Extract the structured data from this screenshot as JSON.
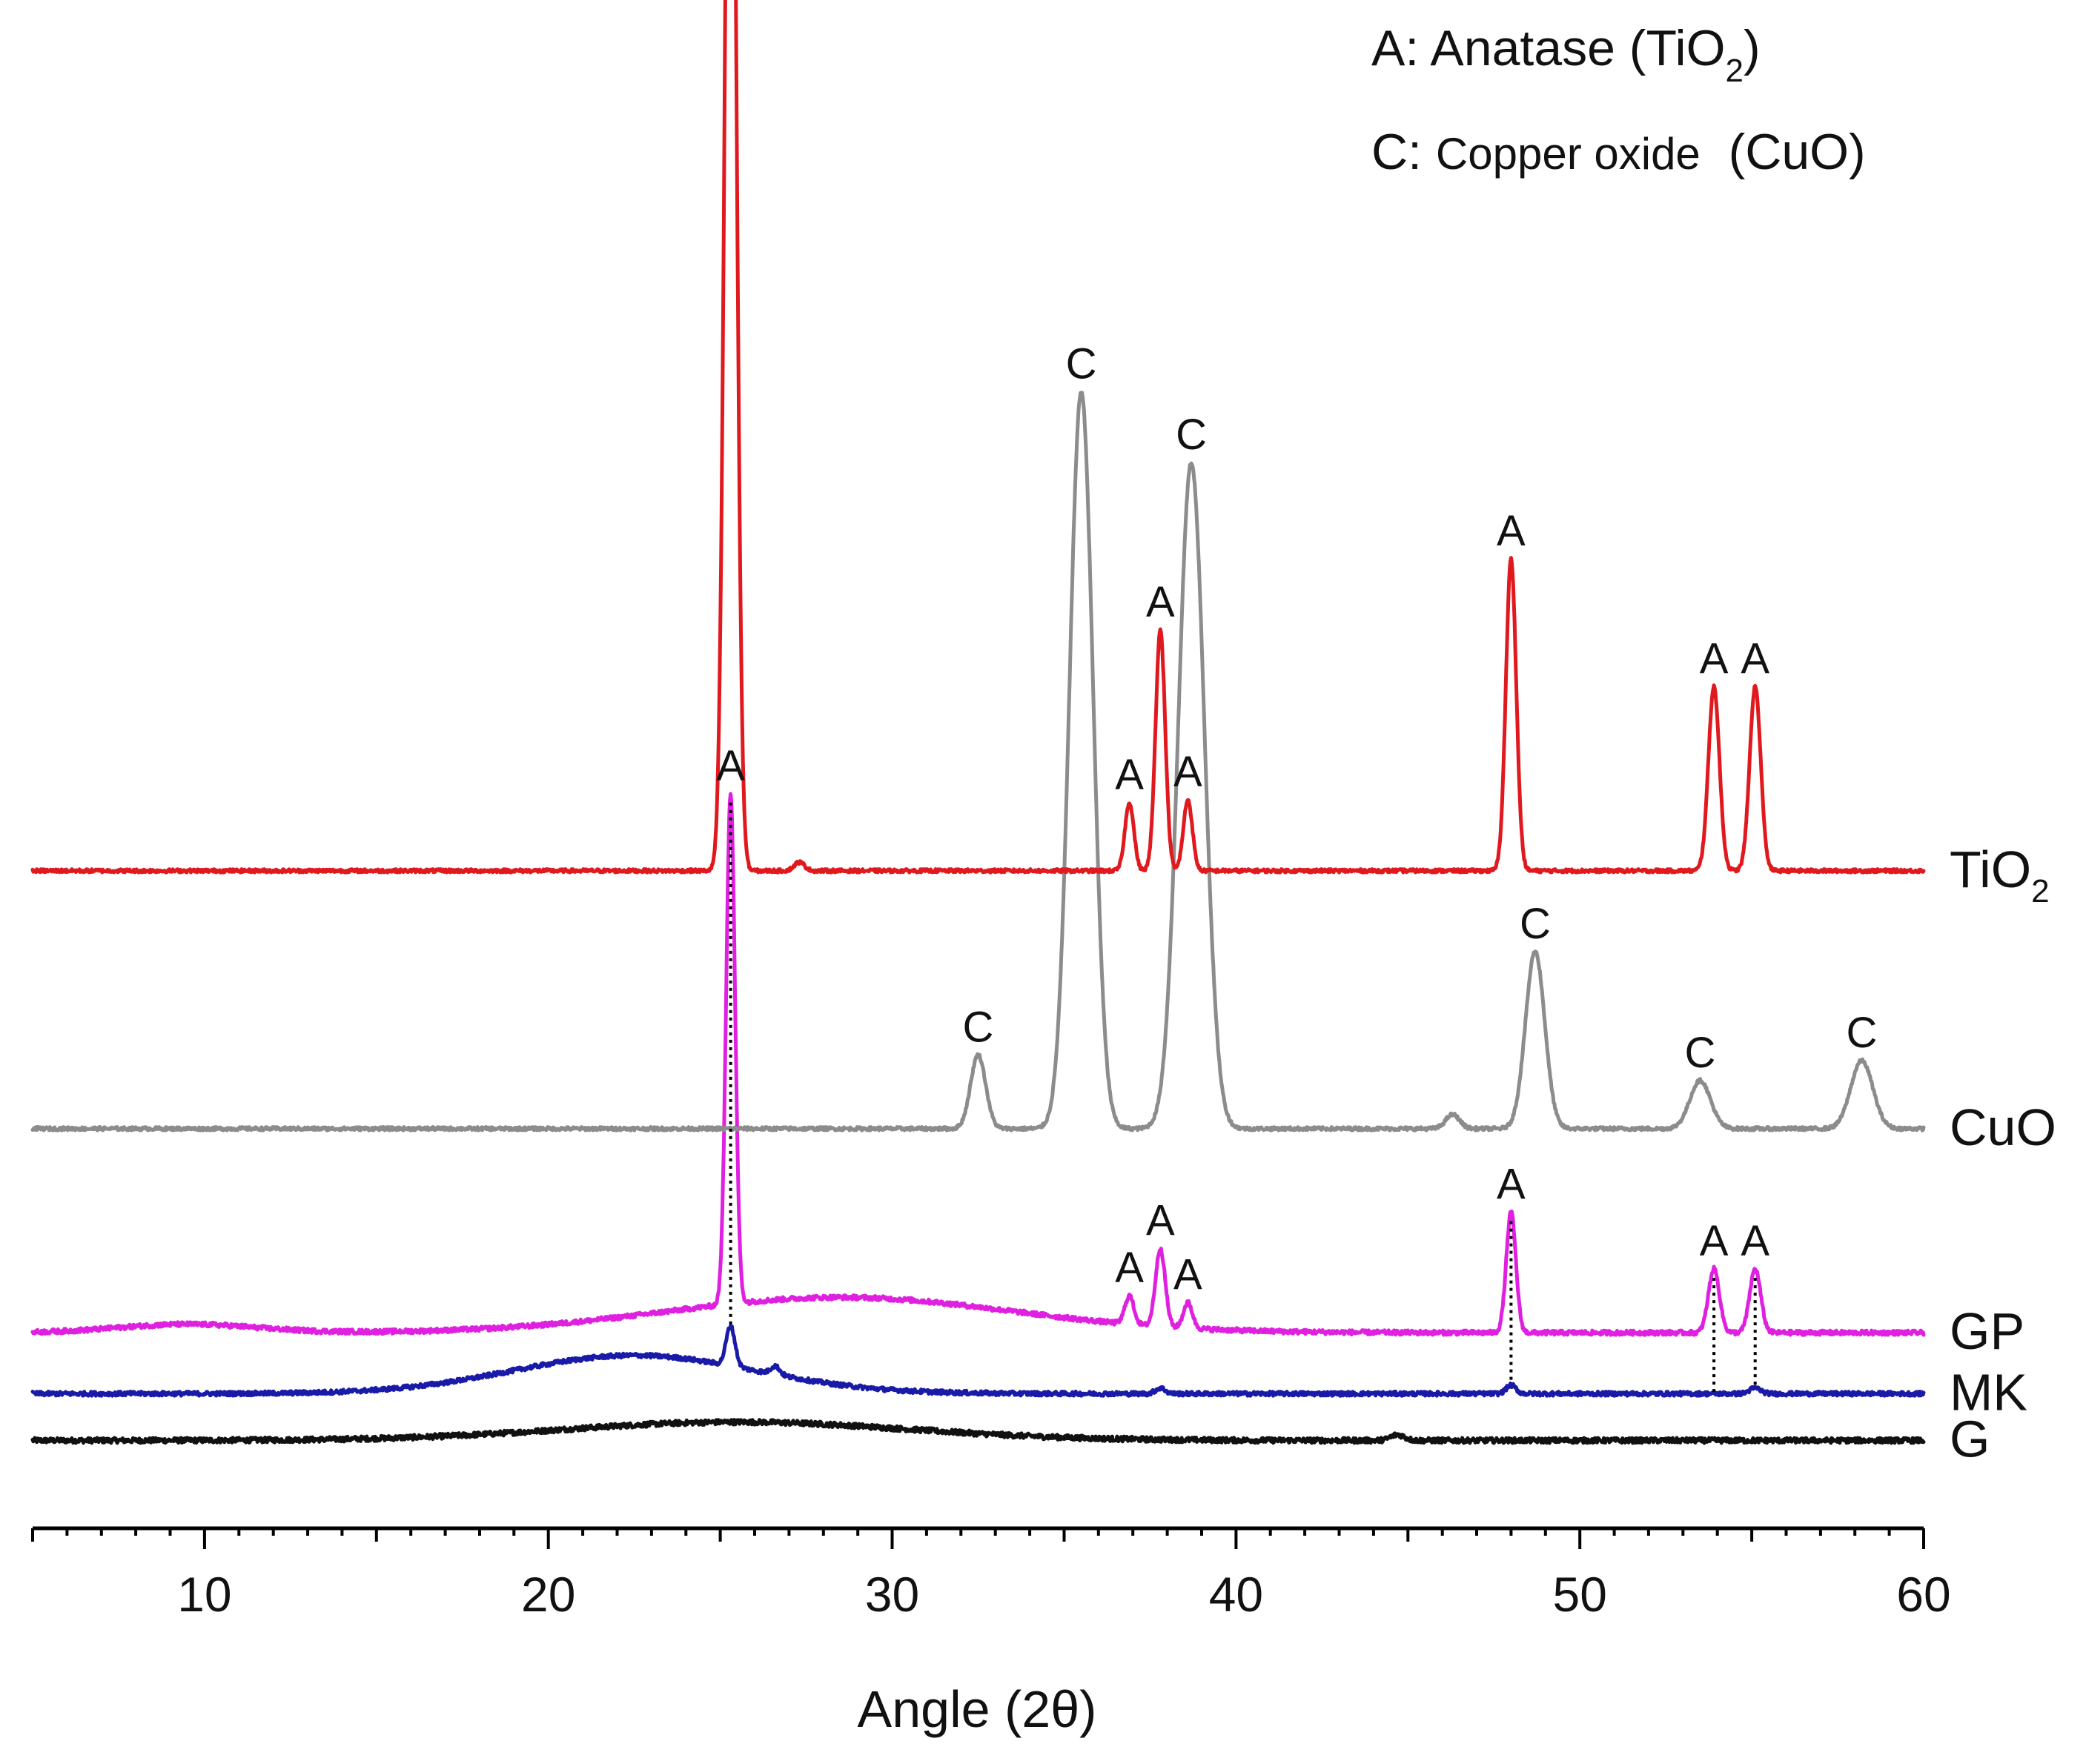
{
  "chart_data": {
    "type": "line",
    "title": "",
    "xlabel": "Angle (2θ)",
    "ylabel": "",
    "xlim": [
      5,
      60
    ],
    "x_ticks": [
      10,
      20,
      30,
      40,
      50,
      60
    ],
    "x_tick_labels": [
      "10",
      "20",
      "30",
      "40",
      "50",
      "60"
    ],
    "legend": {
      "placement": "top-right",
      "entries": [
        {
          "prefix": "A: Anatase (TiO",
          "sub": "2",
          "suffix": ")"
        },
        {
          "prefix": "C: ",
          "small": "Copper oxide",
          "suffix": "  (CuO)"
        }
      ]
    },
    "series": [
      {
        "name": "TiO2",
        "label_main": "TiO",
        "label_sub": "2",
        "color": "#e0191f",
        "baseline": 0.464,
        "noise": 0.0012,
        "peaks": [
          {
            "x": 25.3,
            "h": 0.98,
            "w": 0.16,
            "label": "A"
          },
          {
            "x": 27.3,
            "h": 0.006,
            "w": 0.15,
            "label": ""
          },
          {
            "x": 36.9,
            "h": 0.048,
            "w": 0.13,
            "label": "A"
          },
          {
            "x": 37.8,
            "h": 0.17,
            "w": 0.14,
            "label": "A"
          },
          {
            "x": 38.6,
            "h": 0.05,
            "w": 0.13,
            "label": "A"
          },
          {
            "x": 48.0,
            "h": 0.22,
            "w": 0.15,
            "label": "A"
          },
          {
            "x": 53.9,
            "h": 0.13,
            "w": 0.16,
            "label": "A"
          },
          {
            "x": 55.1,
            "h": 0.13,
            "w": 0.16,
            "label": "A"
          }
        ]
      },
      {
        "name": "CuO",
        "label_main": "CuO",
        "label_sub": "",
        "color": "#8c8c8c",
        "baseline": 0.282,
        "noise": 0.0012,
        "peaks": [
          {
            "x": 32.5,
            "h": 0.052,
            "w": 0.22,
            "label": "C"
          },
          {
            "x": 35.5,
            "h": 0.52,
            "w": 0.34,
            "label": "C"
          },
          {
            "x": 38.7,
            "h": 0.47,
            "w": 0.38,
            "label": "C"
          },
          {
            "x": 46.3,
            "h": 0.01,
            "w": 0.2,
            "label": ""
          },
          {
            "x": 48.7,
            "h": 0.125,
            "w": 0.28,
            "label": "C"
          },
          {
            "x": 53.5,
            "h": 0.034,
            "w": 0.3,
            "label": "C"
          },
          {
            "x": 58.2,
            "h": 0.048,
            "w": 0.32,
            "label": "C"
          }
        ]
      },
      {
        "name": "GP",
        "label_main": "GP",
        "label_sub": "",
        "color": "#e020e0",
        "baseline": 0.138,
        "noise": 0.0016,
        "humps": [
          {
            "x": 28.5,
            "h": 0.025,
            "w": 5.0
          },
          {
            "x": 9.5,
            "h": 0.006,
            "w": 2.0
          }
        ],
        "peaks": [
          {
            "x": 25.3,
            "h": 0.36,
            "w": 0.13,
            "label": "A"
          },
          {
            "x": 36.9,
            "h": 0.02,
            "w": 0.13,
            "label": "A"
          },
          {
            "x": 37.8,
            "h": 0.055,
            "w": 0.14,
            "label": "A"
          },
          {
            "x": 38.6,
            "h": 0.018,
            "w": 0.13,
            "label": "A"
          },
          {
            "x": 48.0,
            "h": 0.085,
            "w": 0.14,
            "label": "A"
          },
          {
            "x": 53.9,
            "h": 0.045,
            "w": 0.16,
            "label": "A"
          },
          {
            "x": 55.1,
            "h": 0.045,
            "w": 0.16,
            "label": "A"
          }
        ]
      },
      {
        "name": "MK",
        "label_main": "MK",
        "label_sub": "",
        "color": "#1a1aa8",
        "baseline": 0.095,
        "noise": 0.0015,
        "humps": [
          {
            "x": 22.5,
            "h": 0.027,
            "w": 3.5
          }
        ],
        "peaks": [
          {
            "x": 25.3,
            "h": 0.028,
            "w": 0.13,
            "label": ""
          },
          {
            "x": 26.6,
            "h": 0.006,
            "w": 0.13,
            "label": ""
          },
          {
            "x": 37.8,
            "h": 0.004,
            "w": 0.14,
            "label": ""
          },
          {
            "x": 48.0,
            "h": 0.006,
            "w": 0.14,
            "label": ""
          },
          {
            "x": 55.1,
            "h": 0.004,
            "w": 0.16,
            "label": ""
          }
        ]
      },
      {
        "name": "G",
        "label_main": "G",
        "label_sub": "",
        "color": "#111111",
        "baseline": 0.062,
        "noise": 0.0018,
        "humps": [
          {
            "x": 25.5,
            "h": 0.013,
            "w": 5.0
          }
        ],
        "peaks": [
          {
            "x": 44.7,
            "h": 0.004,
            "w": 0.2,
            "label": ""
          }
        ]
      }
    ],
    "guide_lines": [
      {
        "x": 25.3,
        "from": "GP",
        "to": "MK"
      },
      {
        "x": 48.0,
        "from": "GP",
        "to": "MK"
      },
      {
        "x": 53.9,
        "from": "GP",
        "to": "MK"
      },
      {
        "x": 55.1,
        "from": "GP",
        "to": "MK"
      }
    ]
  }
}
